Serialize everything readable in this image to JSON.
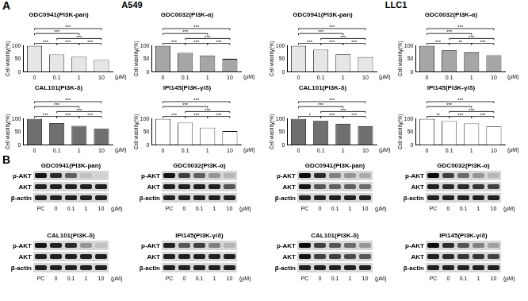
{
  "panel_labels": [
    "A",
    "B"
  ],
  "groups": [
    "A549",
    "LLC1"
  ],
  "chart_data": [
    {
      "type": "bar",
      "group": "A549",
      "title": "GDC0941(PI3K-pan)",
      "categories": [
        "0",
        "0.1",
        "1",
        "10"
      ],
      "x_label": "(μM)",
      "y_label": "Cell viability(%)",
      "values": [
        100,
        67,
        58,
        46
      ],
      "color": "#e6e6e6",
      "ylim": [
        0,
        100
      ],
      "yticks": [
        0,
        50,
        100
      ],
      "grid": false,
      "significance": [
        {
          "from": "0",
          "to": "0.1",
          "label": "***"
        },
        {
          "from": "1",
          "to": "10",
          "label": "***"
        },
        {
          "from": "0.1",
          "to": "1",
          "label": "***"
        },
        {
          "from": "0.1",
          "to": "10",
          "label": "***"
        },
        {
          "from": "0",
          "to": "1",
          "label": "***"
        },
        {
          "from": "0",
          "to": "10",
          "label": "***"
        }
      ]
    },
    {
      "type": "bar",
      "group": "A549",
      "title": "GDC0032(PI3K-α)",
      "categories": [
        "0",
        "0.1",
        "1",
        "10"
      ],
      "x_label": "(μM)",
      "y_label": "Cell viability(%)",
      "values": [
        100,
        73,
        62,
        50
      ],
      "color": "#a6a6a6",
      "ylim": [
        0,
        100
      ],
      "yticks": [
        0,
        50,
        100
      ],
      "grid": false,
      "significance": [
        {
          "from": "0",
          "to": "0.1",
          "label": "***"
        },
        {
          "from": "1",
          "to": "10",
          "label": "***"
        },
        {
          "from": "0.1",
          "to": "1",
          "label": "***"
        },
        {
          "from": "0.1",
          "to": "10",
          "label": "***"
        },
        {
          "from": "0",
          "to": "1",
          "label": "***"
        },
        {
          "from": "0",
          "to": "10",
          "label": "***"
        }
      ]
    },
    {
      "type": "bar",
      "group": "A549",
      "title": "CAL101(PI3K-δ)",
      "categories": [
        "0",
        "0.1",
        "1",
        "10"
      ],
      "x_label": "(μM)",
      "y_label": "Cell viability(%)",
      "values": [
        100,
        84,
        73,
        63
      ],
      "color": "#707070",
      "ylim": [
        0,
        100
      ],
      "yticks": [
        0,
        50,
        100
      ],
      "grid": false,
      "significance": [
        {
          "from": "0",
          "to": "0.1",
          "label": "***"
        },
        {
          "from": "1",
          "to": "10",
          "label": "***"
        },
        {
          "from": "0.1",
          "to": "1",
          "label": "***"
        },
        {
          "from": "0.1",
          "to": "10",
          "label": "***"
        },
        {
          "from": "0",
          "to": "1",
          "label": "***"
        },
        {
          "from": "0",
          "to": "10",
          "label": "***"
        }
      ]
    },
    {
      "type": "bar",
      "group": "A549",
      "title": "IPI145(PI3K-γ/δ)",
      "categories": [
        "0",
        "0.1",
        "1",
        "10"
      ],
      "x_label": "(μM)",
      "y_label": "Cell viability(%)",
      "values": [
        100,
        85,
        66,
        53
      ],
      "color": "#ffffff",
      "ylim": [
        0,
        100
      ],
      "yticks": [
        0,
        50,
        100
      ],
      "grid": false,
      "significance": [
        {
          "from": "0",
          "to": "0.1",
          "label": "***"
        },
        {
          "from": "1",
          "to": "10",
          "label": "***"
        },
        {
          "from": "0.1",
          "to": "1",
          "label": "***"
        },
        {
          "from": "0.1",
          "to": "10",
          "label": "***"
        },
        {
          "from": "0",
          "to": "1",
          "label": "***"
        },
        {
          "from": "0",
          "to": "10",
          "label": "***"
        }
      ]
    },
    {
      "type": "bar",
      "group": "LLC1",
      "title": "GDC0941(PI3K-pan)",
      "categories": [
        "0",
        "0.1",
        "1",
        "10"
      ],
      "x_label": "(μM)",
      "y_label": "Cell viability(%)",
      "values": [
        100,
        85,
        68,
        57
      ],
      "color": "#e6e6e6",
      "ylim": [
        0,
        100
      ],
      "yticks": [
        0,
        50,
        100
      ],
      "grid": false,
      "significance": [
        {
          "from": "0",
          "to": "0.1",
          "label": "***"
        },
        {
          "from": "1",
          "to": "10",
          "label": "***"
        },
        {
          "from": "0.1",
          "to": "1",
          "label": "***"
        },
        {
          "from": "0.1",
          "to": "10",
          "label": "***"
        },
        {
          "from": "0",
          "to": "1",
          "label": "***"
        },
        {
          "from": "0",
          "to": "10",
          "label": "***"
        }
      ]
    },
    {
      "type": "bar",
      "group": "LLC1",
      "title": "GDC0032(PI3K-α)",
      "categories": [
        "0",
        "0.1",
        "1",
        "10"
      ],
      "x_label": "(μM)",
      "y_label": "Cell viability(%)",
      "values": [
        100,
        83,
        75,
        64
      ],
      "color": "#a6a6a6",
      "ylim": [
        0,
        100
      ],
      "yticks": [
        0,
        50,
        100
      ],
      "grid": false,
      "significance": [
        {
          "from": "0",
          "to": "0.1",
          "label": "***"
        },
        {
          "from": "1",
          "to": "10",
          "label": "***"
        },
        {
          "from": "0.1",
          "to": "1",
          "label": "**"
        },
        {
          "from": "0.1",
          "to": "10",
          "label": "***"
        },
        {
          "from": "0",
          "to": "1",
          "label": "***"
        },
        {
          "from": "0",
          "to": "10",
          "label": "***"
        }
      ]
    },
    {
      "type": "bar",
      "group": "LLC1",
      "title": "CAL101(PI3K-δ)",
      "categories": [
        "0",
        "0.1",
        "1",
        "10"
      ],
      "x_label": "(μM)",
      "y_label": "Cell viability(%)",
      "values": [
        100,
        92,
        81,
        72
      ],
      "color": "#707070",
      "ylim": [
        0,
        100
      ],
      "yticks": [
        0,
        50,
        100
      ],
      "grid": false,
      "significance": [
        {
          "from": "0",
          "to": "0.1",
          "label": "*"
        },
        {
          "from": "1",
          "to": "10",
          "label": "***"
        },
        {
          "from": "0.1",
          "to": "1",
          "label": "***"
        },
        {
          "from": "0.1",
          "to": "10",
          "label": "***"
        },
        {
          "from": "0",
          "to": "1",
          "label": "***"
        },
        {
          "from": "0",
          "to": "10",
          "label": "***"
        }
      ]
    },
    {
      "type": "bar",
      "group": "LLC1",
      "title": "IPI145(PI3K-γ/δ)",
      "categories": [
        "0",
        "0.1",
        "1",
        "10"
      ],
      "x_label": "(μM)",
      "y_label": "Cell viability(%)",
      "values": [
        100,
        91,
        82,
        71
      ],
      "color": "#ffffff",
      "ylim": [
        0,
        100
      ],
      "yticks": [
        0,
        50,
        100
      ],
      "grid": false,
      "significance": [
        {
          "from": "0",
          "to": "0.1",
          "label": "**"
        },
        {
          "from": "1",
          "to": "10",
          "label": "***"
        },
        {
          "from": "0.1",
          "to": "1",
          "label": "***"
        },
        {
          "from": "0.1",
          "to": "10",
          "label": "***"
        },
        {
          "from": "0",
          "to": "1",
          "label": "***"
        },
        {
          "from": "0",
          "to": "10",
          "label": "***"
        }
      ]
    }
  ],
  "blots": [
    {
      "group": "A549",
      "title": "GDC0941(PI3K-pan)",
      "lanes": [
        "PC",
        "0",
        "0.1",
        "1",
        "10"
      ],
      "unit": "(μM)",
      "rows": [
        {
          "name": "p-AKT",
          "intensity": [
            0.9,
            0.8,
            0.55,
            0.1,
            0.02
          ]
        },
        {
          "name": "AKT",
          "intensity": [
            0.85,
            0.85,
            0.85,
            0.85,
            0.85
          ]
        },
        {
          "name": "β-actin",
          "intensity": [
            0.85,
            0.85,
            0.85,
            0.85,
            0.85
          ]
        }
      ]
    },
    {
      "group": "A549",
      "title": "GDC0032(PI3K-α)",
      "lanes": [
        "PC",
        "0",
        "0.1",
        "1",
        "10"
      ],
      "unit": "(μM)",
      "rows": [
        {
          "name": "p-AKT",
          "intensity": [
            0.9,
            0.7,
            0.55,
            0.3,
            0.15
          ]
        },
        {
          "name": "AKT",
          "intensity": [
            0.85,
            0.85,
            0.85,
            0.85,
            0.6
          ]
        },
        {
          "name": "β-actin",
          "intensity": [
            0.85,
            0.85,
            0.85,
            0.85,
            0.85
          ]
        }
      ]
    },
    {
      "group": "A549",
      "title": "CAL101(PI3K-δ)",
      "lanes": [
        "PC",
        "0",
        "0.1",
        "1",
        "10"
      ],
      "unit": "(μM)",
      "rows": [
        {
          "name": "p-AKT",
          "intensity": [
            0.9,
            0.85,
            0.8,
            0.3,
            0.1
          ]
        },
        {
          "name": "AKT",
          "intensity": [
            0.85,
            0.85,
            0.85,
            0.85,
            0.85
          ]
        },
        {
          "name": "β-actin",
          "intensity": [
            0.85,
            0.85,
            0.85,
            0.85,
            0.85
          ]
        }
      ]
    },
    {
      "group": "A549",
      "title": "IPI145(PI3K-γ/δ)",
      "lanes": [
        "PC",
        "0",
        "0.1",
        "1",
        "10"
      ],
      "unit": "(μM)",
      "rows": [
        {
          "name": "p-AKT",
          "intensity": [
            0.85,
            0.6,
            0.7,
            0.4,
            0.15
          ]
        },
        {
          "name": "AKT",
          "intensity": [
            0.85,
            0.85,
            0.85,
            0.85,
            0.85
          ]
        },
        {
          "name": "β-actin",
          "intensity": [
            0.85,
            0.85,
            0.85,
            0.85,
            0.85
          ]
        }
      ]
    },
    {
      "group": "LLC1",
      "title": "GDC0941(PI3K-pan)",
      "lanes": [
        "PC",
        "0",
        "0.1",
        "1",
        "10"
      ],
      "unit": "(μM)",
      "rows": [
        {
          "name": "p-AKT",
          "intensity": [
            0.95,
            0.8,
            0.4,
            0.3,
            0.2
          ]
        },
        {
          "name": "AKT",
          "intensity": [
            0.9,
            0.6,
            0.55,
            0.55,
            0.5
          ]
        },
        {
          "name": "β-actin",
          "intensity": [
            0.85,
            0.85,
            0.85,
            0.85,
            0.85
          ]
        }
      ]
    },
    {
      "group": "LLC1",
      "title": "GDC0032(PI3K-α)",
      "lanes": [
        "PC",
        "0",
        "0.1",
        "1",
        "10"
      ],
      "unit": "(μM)",
      "rows": [
        {
          "name": "p-AKT",
          "intensity": [
            0.95,
            0.7,
            0.5,
            0.3,
            0.15
          ]
        },
        {
          "name": "AKT",
          "intensity": [
            0.85,
            0.8,
            0.8,
            0.75,
            0.7
          ]
        },
        {
          "name": "β-actin",
          "intensity": [
            0.85,
            0.85,
            0.85,
            0.85,
            0.85
          ]
        }
      ]
    },
    {
      "group": "LLC1",
      "title": "CAL101(PI3K-δ)",
      "lanes": [
        "PC",
        "0",
        "0.1",
        "1",
        "10"
      ],
      "unit": "(μM)",
      "rows": [
        {
          "name": "p-AKT",
          "intensity": [
            0.95,
            0.7,
            0.6,
            0.5,
            0.3
          ]
        },
        {
          "name": "AKT",
          "intensity": [
            0.9,
            0.7,
            0.7,
            0.65,
            0.6
          ]
        },
        {
          "name": "β-actin",
          "intensity": [
            0.85,
            0.85,
            0.85,
            0.85,
            0.85
          ]
        }
      ]
    },
    {
      "group": "LLC1",
      "title": "IPI145(PI3K-γ/δ)",
      "lanes": [
        "PC",
        "0",
        "0.1",
        "1",
        "10"
      ],
      "unit": "(μM)",
      "rows": [
        {
          "name": "p-AKT",
          "intensity": [
            0.95,
            0.8,
            0.6,
            0.4,
            0.25
          ]
        },
        {
          "name": "AKT",
          "intensity": [
            0.85,
            0.8,
            0.75,
            0.75,
            0.7
          ]
        },
        {
          "name": "β-actin",
          "intensity": [
            0.85,
            0.85,
            0.85,
            0.85,
            0.85
          ]
        }
      ]
    }
  ]
}
